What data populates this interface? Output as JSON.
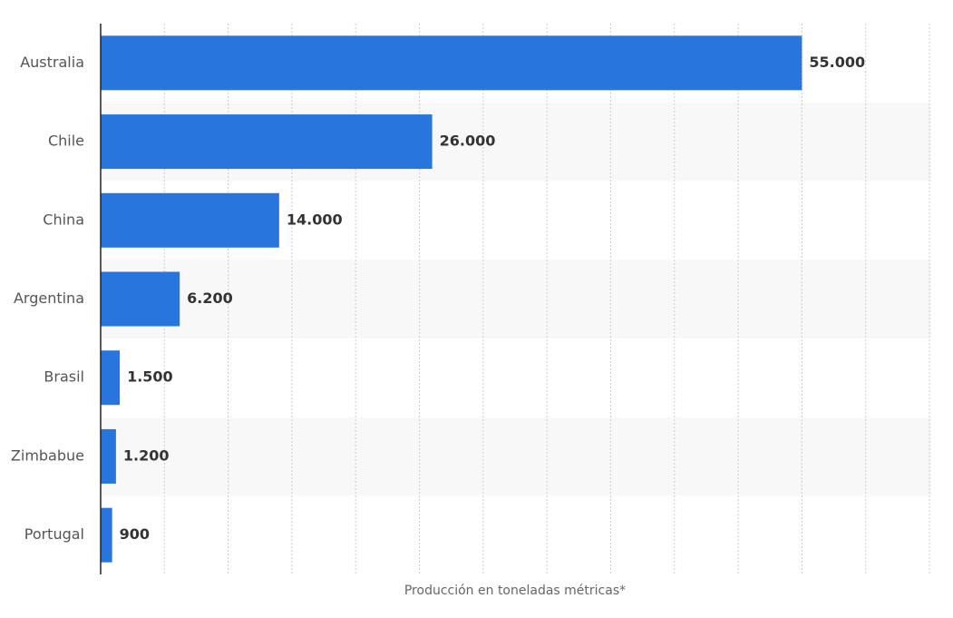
{
  "chart_data": {
    "type": "bar",
    "orientation": "horizontal",
    "categories": [
      "Australia",
      "Chile",
      "China",
      "Argentina",
      "Brasil",
      "Zimbabue",
      "Portugal"
    ],
    "values": [
      55000,
      26000,
      14000,
      6200,
      1500,
      1200,
      900
    ],
    "value_labels": [
      "55.000",
      "26.000",
      "14.000",
      "6.200",
      "1.500",
      "1.200",
      "900"
    ],
    "color": "#2876dd",
    "x_label": "Producción en toneladas métricas*",
    "xlim": [
      0,
      65000
    ],
    "xticks": [
      0,
      5000,
      10000,
      15000,
      20000,
      25000,
      30000,
      35000,
      40000,
      45000,
      50000,
      55000,
      60000,
      65000
    ],
    "grid": true
  }
}
